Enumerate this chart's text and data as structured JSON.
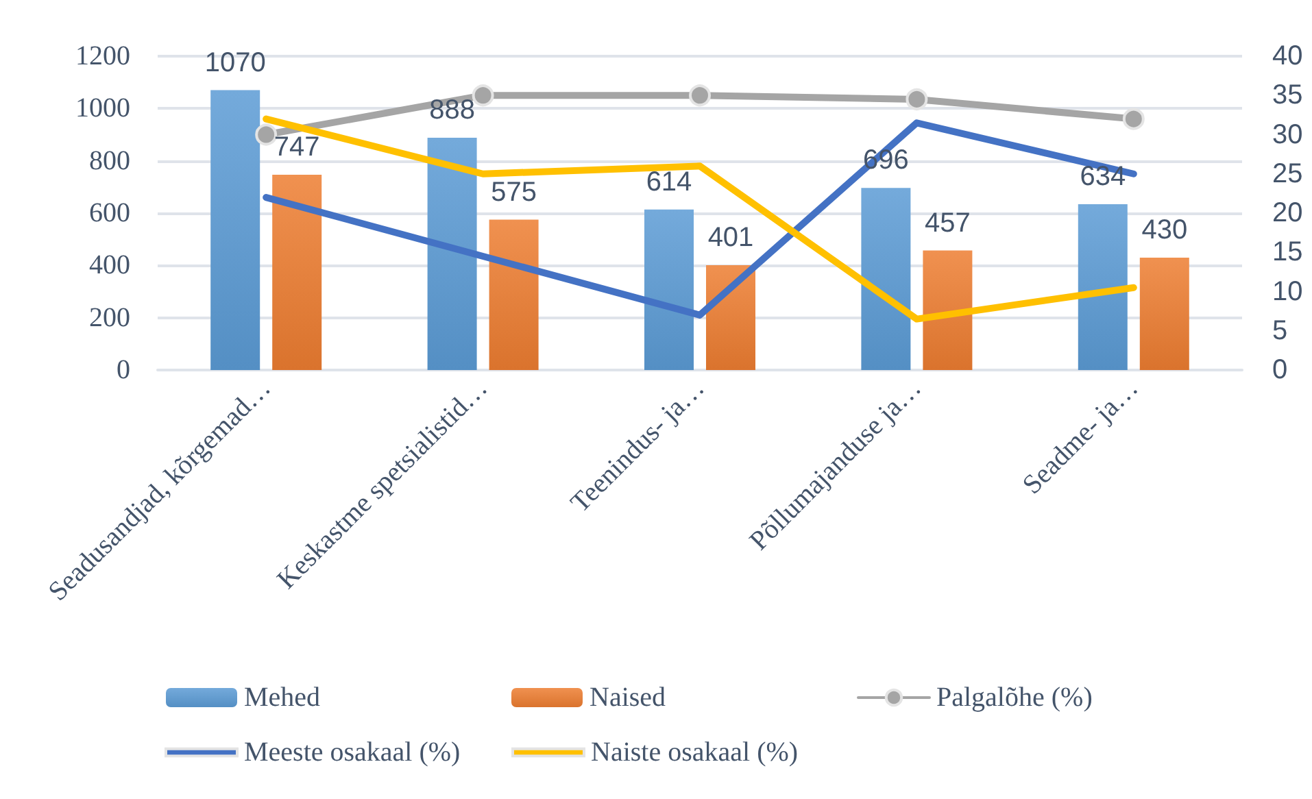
{
  "chart_data": {
    "type": "bar",
    "categories": [
      "Seadusandjad, kõrgemad…",
      "Keskastme spetsialistid…",
      "Teenindus- ja…",
      "Põllumajanduse ja…",
      "Seadme- ja…"
    ],
    "series": [
      {
        "name": "Mehed",
        "color": "#5b9bd5",
        "values": [
          1070,
          888,
          614,
          696,
          634
        ],
        "value_labels": [
          "1070",
          "888",
          "614",
          "696",
          "634"
        ]
      },
      {
        "name": "Naised",
        "color": "#ed7d31",
        "values": [
          747,
          575,
          401,
          457,
          430
        ],
        "value_labels": [
          "747",
          "575",
          "401",
          "457",
          "430"
        ]
      },
      {
        "name": "Palgalõhe (%)",
        "type": "line",
        "axis": "y2",
        "color": "#a5a5a5",
        "marker": "circle",
        "values": [
          30,
          35,
          35,
          34.5,
          32
        ]
      },
      {
        "name": "Meeste osakaal (%)",
        "type": "line",
        "axis": "y2",
        "color": "#4472c4",
        "values": [
          22,
          14.5,
          7,
          31.5,
          25
        ]
      },
      {
        "name": "Naiste osakaal (%)",
        "type": "line",
        "axis": "y2",
        "color": "#ffc000",
        "values": [
          32,
          25,
          26,
          6.5,
          10.5
        ]
      }
    ],
    "ylim": [
      0,
      1200
    ],
    "yticks": [
      0,
      200,
      400,
      600,
      800,
      1000,
      1200
    ],
    "y2lim": [
      0,
      40
    ],
    "y2ticks": [
      0,
      5,
      10,
      15,
      20,
      25,
      30,
      35,
      40
    ],
    "grid": "y",
    "legend": "bottom"
  }
}
